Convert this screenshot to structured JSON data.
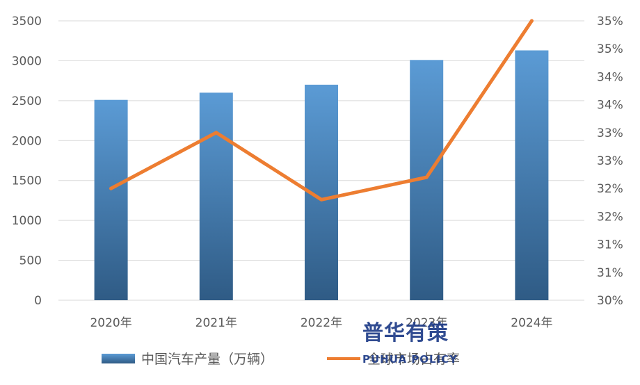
{
  "chart_data": {
    "type": "bar",
    "categories": [
      "2020年",
      "2021年",
      "2022年",
      "2023年",
      "2024年"
    ],
    "series": [
      {
        "name": "中国汽车产量（万辆）",
        "type": "bar",
        "axis": "left",
        "values": [
          2510,
          2600,
          2700,
          3010,
          3130
        ]
      },
      {
        "name": "全球市场占有率",
        "type": "line",
        "axis": "right",
        "values": [
          32.0,
          33.0,
          31.8,
          32.2,
          35.0
        ]
      }
    ],
    "y_left": {
      "min": 0,
      "max": 3500,
      "step": 500,
      "ticks": [
        "0",
        "500",
        "1000",
        "1500",
        "2000",
        "2500",
        "3000",
        "3500"
      ]
    },
    "y_right": {
      "min": 30,
      "max": 35,
      "step": 0.5,
      "ticks": [
        "30%",
        "31%",
        "31%",
        "32%",
        "32%",
        "33%",
        "33%",
        "34%",
        "34%",
        "35%",
        "35%"
      ]
    },
    "grid": true,
    "legend_position": "bottom",
    "colors": {
      "bar_top": "#5b9bd5",
      "bar_bottom": "#2f5b85",
      "line": "#ed7d31",
      "grid": "#d9d9d9"
    }
  },
  "watermark": {
    "text_cn": "普华有策",
    "text_en": "PUHUA POLICY"
  }
}
